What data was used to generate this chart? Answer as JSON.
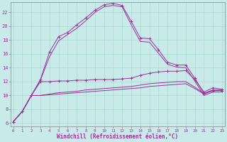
{
  "xlabel": "Windchill (Refroidissement éolien,°C)",
  "bg_color": "#c8eae8",
  "line_color": "#993399",
  "grid_color": "#aad8d0",
  "x_ticks": [
    0,
    1,
    2,
    3,
    4,
    5,
    6,
    7,
    8,
    9,
    10,
    11,
    12,
    13,
    14,
    15,
    16,
    17,
    18,
    19,
    20,
    21,
    22,
    23
  ],
  "y_ticks": [
    6,
    8,
    10,
    12,
    14,
    16,
    18,
    20,
    22
  ],
  "xlim": [
    -0.3,
    23.3
  ],
  "ylim": [
    5.5,
    23.5
  ],
  "series": [
    {
      "x": [
        0,
        1,
        2,
        3,
        4,
        5,
        6,
        7,
        8,
        9,
        10,
        11,
        12,
        13,
        14,
        15,
        16,
        17,
        18,
        19,
        20,
        21,
        22,
        23
      ],
      "y": [
        6.2,
        7.7,
        10.0,
        12.3,
        16.3,
        18.5,
        19.1,
        20.2,
        21.2,
        22.3,
        23.1,
        23.3,
        23.0,
        20.7,
        18.3,
        18.2,
        16.6,
        14.8,
        14.4,
        14.4,
        12.5,
        10.3,
        10.7,
        10.7
      ],
      "marker": true
    },
    {
      "x": [
        0,
        1,
        2,
        3,
        4,
        5,
        6,
        7,
        8,
        9,
        10,
        11,
        12,
        13,
        14,
        15,
        16,
        17,
        18,
        19,
        20,
        21,
        22,
        23
      ],
      "y": [
        6.2,
        7.7,
        10.0,
        12.2,
        15.6,
        17.9,
        18.8,
        19.7,
        20.8,
        22.0,
        22.8,
        23.0,
        22.8,
        20.2,
        17.8,
        17.7,
        16.1,
        14.5,
        14.1,
        14.0,
        12.1,
        10.0,
        10.5,
        10.5
      ],
      "marker": false
    },
    {
      "x": [
        0,
        1,
        2,
        3,
        4,
        5,
        6,
        7,
        8,
        9,
        10,
        11,
        12,
        13,
        14,
        15,
        16,
        17,
        18,
        19,
        20,
        21,
        22,
        23
      ],
      "y": [
        6.2,
        7.7,
        10.0,
        12.0,
        12.0,
        12.1,
        12.1,
        12.2,
        12.2,
        12.3,
        12.3,
        12.3,
        12.4,
        12.5,
        12.9,
        13.2,
        13.4,
        13.5,
        13.5,
        13.6,
        12.3,
        10.5,
        11.1,
        10.9
      ],
      "marker": true
    },
    {
      "x": [
        0,
        1,
        2,
        3,
        4,
        5,
        6,
        7,
        8,
        9,
        10,
        11,
        12,
        13,
        14,
        15,
        16,
        17,
        18,
        19,
        20,
        21,
        22,
        23
      ],
      "y": [
        6.2,
        7.7,
        10.0,
        10.0,
        10.2,
        10.4,
        10.5,
        10.6,
        10.8,
        10.9,
        11.0,
        11.1,
        11.2,
        11.3,
        11.5,
        11.7,
        11.8,
        11.9,
        12.0,
        12.0,
        11.2,
        10.3,
        10.8,
        10.8
      ],
      "marker": false
    },
    {
      "x": [
        0,
        1,
        2,
        3,
        4,
        5,
        6,
        7,
        8,
        9,
        10,
        11,
        12,
        13,
        14,
        15,
        16,
        17,
        18,
        19,
        20,
        21,
        22,
        23
      ],
      "y": [
        6.2,
        7.7,
        10.0,
        10.0,
        10.1,
        10.2,
        10.3,
        10.4,
        10.5,
        10.6,
        10.7,
        10.8,
        10.9,
        11.0,
        11.1,
        11.3,
        11.4,
        11.5,
        11.6,
        11.7,
        11.0,
        10.2,
        10.7,
        10.7
      ],
      "marker": false
    }
  ]
}
